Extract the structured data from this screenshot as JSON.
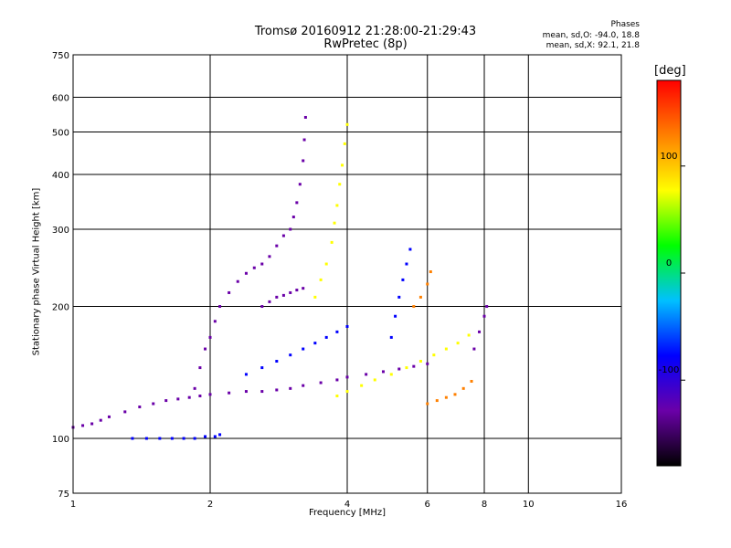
{
  "chart_data": {
    "type": "scatter",
    "title": "Tromsø 20160912 21:28:00-21:29:43",
    "subtitle": "RwPretec (8p)",
    "xlabel": "Frequency [MHz]",
    "ylabel": "Stationary phase Virtual Height [km]",
    "x_scale": "log",
    "y_scale": "log",
    "xlim": [
      1,
      16
    ],
    "ylim": [
      75,
      750
    ],
    "x_ticks": [
      1,
      2,
      4,
      6,
      8,
      10,
      16
    ],
    "y_ticks": [
      75,
      100,
      200,
      300,
      400,
      500,
      600,
      750
    ],
    "grid": true,
    "phases": {
      "header": "Phases",
      "o_text": "mean, sd,O: -94.0, 18.8",
      "x_text": "mean, sd,X:  92.1, 21.8"
    },
    "colorbar": {
      "label": "[deg]",
      "ticks": [
        100,
        0,
        -100
      ],
      "range": [
        -180,
        180
      ],
      "colors": [
        "#000000",
        "#6a00a8",
        "#0000ff",
        "#00c0ff",
        "#00ff00",
        "#ffff00",
        "#ff8000",
        "#ff0000"
      ]
    },
    "trace_colors": {
      "o_mode": "#1a3cff",
      "x_mode": "#f0e000",
      "x_mode_alt": "#ff9a00",
      "mixed": "#10a8ff"
    },
    "traces": [
      {
        "name": "",
        "mode": "o",
        "phase": -110,
        "points": [
          [
            1.0,
            106
          ],
          [
            1.05,
            107
          ],
          [
            1.1,
            108
          ],
          [
            1.15,
            110
          ],
          [
            1.2,
            112
          ],
          [
            1.3,
            115
          ],
          [
            1.4,
            118
          ],
          [
            1.5,
            120
          ],
          [
            1.6,
            122
          ],
          [
            1.7,
            123
          ],
          [
            1.8,
            124
          ],
          [
            1.9,
            125
          ],
          [
            2.0,
            126
          ],
          [
            2.2,
            127
          ],
          [
            2.4,
            128
          ],
          [
            2.6,
            128
          ],
          [
            2.8,
            129
          ],
          [
            3.0,
            130
          ],
          [
            3.2,
            132
          ],
          [
            3.5,
            134
          ],
          [
            3.8,
            136
          ],
          [
            4.0,
            138
          ],
          [
            4.4,
            140
          ],
          [
            4.8,
            142
          ],
          [
            5.2,
            144
          ],
          [
            5.6,
            146
          ],
          [
            6.0,
            148
          ]
        ]
      },
      {
        "name": "",
        "mode": "o",
        "phase": -100,
        "points": [
          [
            1.35,
            100
          ],
          [
            1.45,
            100
          ],
          [
            1.55,
            100
          ],
          [
            1.65,
            100
          ],
          [
            1.75,
            100
          ],
          [
            1.85,
            100
          ],
          [
            1.95,
            101
          ],
          [
            2.05,
            101
          ],
          [
            2.1,
            102
          ]
        ]
      },
      {
        "name": "",
        "mode": "o",
        "phase": -105,
        "points": [
          [
            1.85,
            130
          ],
          [
            1.9,
            145
          ],
          [
            1.95,
            160
          ],
          [
            2.0,
            170
          ],
          [
            2.05,
            185
          ],
          [
            2.1,
            200
          ],
          [
            2.2,
            215
          ],
          [
            2.3,
            228
          ],
          [
            2.4,
            238
          ],
          [
            2.5,
            245
          ],
          [
            2.6,
            250
          ],
          [
            2.7,
            260
          ],
          [
            2.8,
            275
          ],
          [
            2.9,
            290
          ],
          [
            3.0,
            300
          ],
          [
            3.05,
            320
          ],
          [
            3.1,
            345
          ],
          [
            3.15,
            380
          ],
          [
            3.2,
            430
          ],
          [
            3.22,
            480
          ],
          [
            3.24,
            540
          ]
        ]
      },
      {
        "name": "",
        "mode": "o",
        "phase": -115,
        "points": [
          [
            2.6,
            200
          ],
          [
            2.7,
            205
          ],
          [
            2.8,
            210
          ],
          [
            2.9,
            212
          ],
          [
            3.0,
            215
          ],
          [
            3.1,
            218
          ],
          [
            3.2,
            220
          ]
        ]
      },
      {
        "name": "",
        "mode": "o",
        "phase": -100,
        "points": [
          [
            2.4,
            140
          ],
          [
            2.6,
            145
          ],
          [
            2.8,
            150
          ],
          [
            3.0,
            155
          ],
          [
            3.2,
            160
          ],
          [
            3.4,
            165
          ],
          [
            3.6,
            170
          ],
          [
            3.8,
            175
          ],
          [
            4.0,
            180
          ]
        ]
      },
      {
        "name": "",
        "mode": "x",
        "phase": 95,
        "points": [
          [
            3.4,
            210
          ],
          [
            3.5,
            230
          ],
          [
            3.6,
            250
          ],
          [
            3.7,
            280
          ],
          [
            3.75,
            310
          ],
          [
            3.8,
            340
          ],
          [
            3.85,
            380
          ],
          [
            3.9,
            420
          ],
          [
            3.95,
            470
          ],
          [
            4.0,
            520
          ]
        ]
      },
      {
        "name": "",
        "mode": "x",
        "phase": 100,
        "points": [
          [
            3.8,
            125
          ],
          [
            4.0,
            128
          ],
          [
            4.3,
            132
          ],
          [
            4.6,
            136
          ],
          [
            5.0,
            140
          ],
          [
            5.4,
            145
          ],
          [
            5.8,
            150
          ],
          [
            6.2,
            155
          ],
          [
            6.6,
            160
          ],
          [
            7.0,
            165
          ],
          [
            7.4,
            172
          ]
        ]
      },
      {
        "name": "",
        "mode": "x",
        "phase": 110,
        "points": [
          [
            5.6,
            200
          ],
          [
            5.8,
            210
          ],
          [
            6.0,
            225
          ],
          [
            6.1,
            240
          ]
        ]
      },
      {
        "name": "",
        "mode": "o",
        "phase": -80,
        "points": [
          [
            5.0,
            170
          ],
          [
            5.1,
            190
          ],
          [
            5.2,
            210
          ],
          [
            5.3,
            230
          ],
          [
            5.4,
            250
          ],
          [
            5.5,
            270
          ]
        ]
      },
      {
        "name": "",
        "mode": "x",
        "phase": 115,
        "points": [
          [
            6.0,
            120
          ],
          [
            6.3,
            122
          ],
          [
            6.6,
            124
          ],
          [
            6.9,
            126
          ],
          [
            7.2,
            130
          ],
          [
            7.5,
            135
          ]
        ]
      },
      {
        "name": "",
        "mode": "o",
        "phase": -130,
        "points": [
          [
            7.6,
            160
          ],
          [
            7.8,
            175
          ],
          [
            8.0,
            190
          ],
          [
            8.1,
            200
          ]
        ]
      }
    ]
  }
}
